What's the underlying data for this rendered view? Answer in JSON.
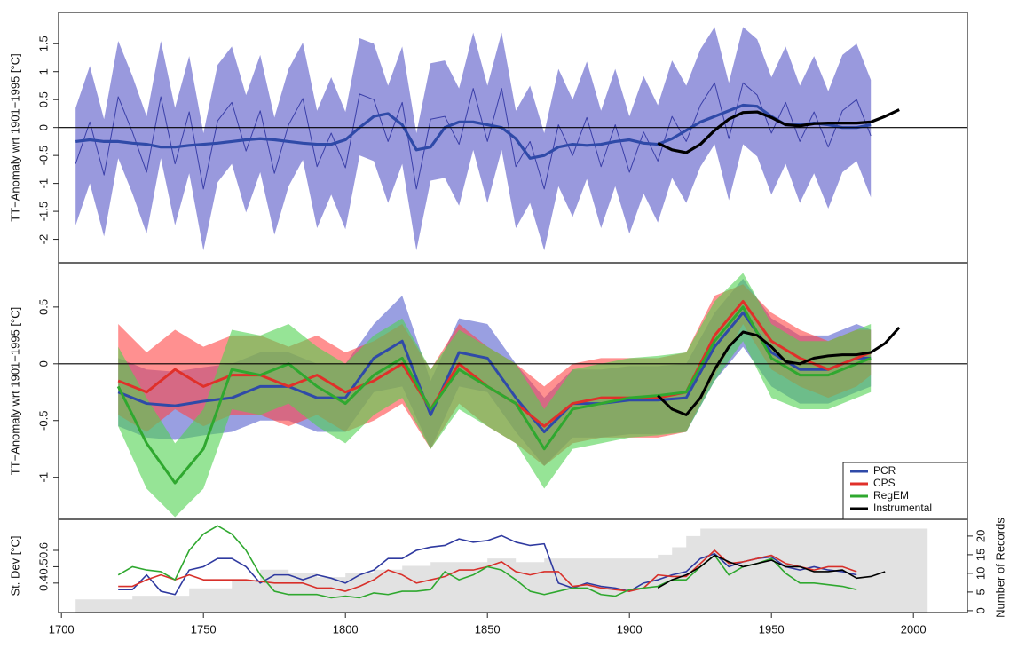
{
  "chart_data": [
    {
      "type": "line",
      "ylabel": "TT−Anomaly wrt 1901−1995 [°C]",
      "xlim": [
        1699,
        2019
      ],
      "ylim": [
        -2.42,
        2.06
      ],
      "yticks": [
        -2,
        -1.5,
        -1,
        -0.5,
        0,
        0.5,
        1,
        1.5
      ],
      "hline": 0,
      "x": [
        1705,
        1710,
        1715,
        1720,
        1725,
        1730,
        1735,
        1740,
        1745,
        1750,
        1755,
        1760,
        1765,
        1770,
        1775,
        1780,
        1785,
        1790,
        1795,
        1800,
        1805,
        1810,
        1815,
        1820,
        1825,
        1830,
        1835,
        1840,
        1845,
        1850,
        1855,
        1860,
        1865,
        1870,
        1875,
        1880,
        1885,
        1890,
        1895,
        1900,
        1905,
        1910,
        1915,
        1920,
        1925,
        1930,
        1935,
        1940,
        1945,
        1950,
        1955,
        1960,
        1965,
        1970,
        1975,
        1980,
        1985
      ],
      "series": [
        {
          "color": "#3a3fa8",
          "band_color": "rgba(90,90,200,0.62)",
          "linewidth": 1,
          "values": [
            -0.65,
            0.1,
            -0.85,
            0.55,
            -0.08,
            -0.8,
            0.55,
            -0.65,
            0.28,
            -1.1,
            0.12,
            0.45,
            -0.42,
            0.3,
            -0.82,
            0.05,
            0.52,
            -0.7,
            -0.1,
            -0.72,
            0.6,
            0.5,
            -0.25,
            0.45,
            -1.1,
            0.15,
            0.2,
            -0.3,
            0.7,
            -0.25,
            0.7,
            -0.7,
            -0.25,
            -1.1,
            0.05,
            -0.5,
            0.18,
            -0.7,
            0.05,
            -0.8,
            -0.08,
            -0.6,
            0.2,
            -0.25,
            0.4,
            0.8,
            -0.2,
            0.8,
            0.58,
            -0.1,
            0.45,
            -0.25,
            0.28,
            -0.35,
            0.3,
            0.5,
            -0.15
          ],
          "upper": [
            0.35,
            1.1,
            0.15,
            1.55,
            0.92,
            0.2,
            1.55,
            0.35,
            1.28,
            -0.1,
            1.12,
            1.45,
            0.58,
            1.3,
            0.18,
            1.05,
            1.52,
            0.3,
            0.9,
            0.28,
            1.6,
            1.5,
            0.75,
            1.45,
            -0.1,
            1.15,
            1.2,
            0.7,
            1.7,
            0.75,
            1.7,
            0.3,
            0.75,
            -0.1,
            1.05,
            0.5,
            1.18,
            0.3,
            1.05,
            0.2,
            0.92,
            0.4,
            1.2,
            0.75,
            1.4,
            1.8,
            0.8,
            1.8,
            1.58,
            0.9,
            1.45,
            0.75,
            1.28,
            0.65,
            1.3,
            1.5,
            0.85
          ],
          "lower": [
            -1.75,
            -1.0,
            -1.95,
            -0.55,
            -1.18,
            -1.9,
            -0.55,
            -1.75,
            -0.82,
            -2.2,
            -0.98,
            -0.65,
            -1.52,
            -0.8,
            -1.92,
            -1.05,
            -0.58,
            -1.8,
            -1.2,
            -1.82,
            -0.5,
            -0.6,
            -1.35,
            -0.65,
            -2.2,
            -0.95,
            -0.9,
            -1.4,
            -0.4,
            -1.35,
            -0.4,
            -1.8,
            -1.35,
            -2.2,
            -1.05,
            -1.6,
            -0.92,
            -1.8,
            -1.05,
            -1.9,
            -1.18,
            -1.7,
            -0.9,
            -1.35,
            -0.7,
            -0.3,
            -1.3,
            -0.3,
            -0.52,
            -1.2,
            -0.65,
            -1.35,
            -0.82,
            -1.45,
            -0.8,
            -0.6,
            -1.25
          ]
        },
        {
          "color": "#2f4aa8",
          "linewidth": 3.2,
          "values": [
            -0.25,
            -0.22,
            -0.25,
            -0.25,
            -0.28,
            -0.3,
            -0.35,
            -0.35,
            -0.32,
            -0.3,
            -0.28,
            -0.25,
            -0.22,
            -0.2,
            -0.22,
            -0.25,
            -0.28,
            -0.3,
            -0.3,
            -0.22,
            0.0,
            0.2,
            0.25,
            0.05,
            -0.4,
            -0.35,
            0.0,
            0.1,
            0.1,
            0.05,
            0.0,
            -0.2,
            -0.55,
            -0.5,
            -0.35,
            -0.3,
            -0.32,
            -0.3,
            -0.25,
            -0.22,
            -0.28,
            -0.3,
            -0.2,
            -0.05,
            0.1,
            0.2,
            0.3,
            0.4,
            0.38,
            0.2,
            0.05,
            0.05,
            0.08,
            0.05,
            0.0,
            0.0,
            0.05
          ]
        },
        {
          "color": "#000000",
          "linewidth": 3.2,
          "x": [
            1910,
            1915,
            1920,
            1925,
            1930,
            1935,
            1940,
            1945,
            1950,
            1955,
            1960,
            1965,
            1970,
            1975,
            1980,
            1985,
            1990,
            1995
          ],
          "values": [
            -0.28,
            -0.4,
            -0.45,
            -0.3,
            -0.05,
            0.15,
            0.27,
            0.28,
            0.18,
            0.05,
            0.03,
            0.07,
            0.08,
            0.08,
            0.08,
            0.1,
            0.2,
            0.32
          ]
        }
      ]
    },
    {
      "type": "line",
      "ylabel": "TT−Anomaly wrt 1901−1995 [°C]",
      "xlim": [
        1699,
        2019
      ],
      "ylim": [
        -1.37,
        0.89
      ],
      "yticks": [
        -1,
        -0.5,
        0,
        0.5
      ],
      "hline": 0,
      "legend": "lower right",
      "x": [
        1720,
        1730,
        1740,
        1750,
        1760,
        1770,
        1780,
        1790,
        1800,
        1810,
        1820,
        1830,
        1840,
        1850,
        1860,
        1870,
        1880,
        1890,
        1900,
        1910,
        1920,
        1930,
        1940,
        1950,
        1960,
        1970,
        1980,
        1985
      ],
      "series": [
        {
          "name": "PCR",
          "color": "#2f4aa8",
          "band_color": "rgba(70,80,200,0.55)",
          "linewidth": 3,
          "values": [
            -0.25,
            -0.35,
            -0.37,
            -0.33,
            -0.3,
            -0.2,
            -0.2,
            -0.3,
            -0.3,
            0.05,
            0.2,
            -0.45,
            0.1,
            0.05,
            -0.3,
            -0.6,
            -0.35,
            -0.35,
            -0.32,
            -0.32,
            -0.3,
            0.15,
            0.45,
            0.1,
            -0.05,
            -0.05,
            0.05,
            0.05
          ],
          "upper": [
            0.05,
            -0.05,
            -0.07,
            -0.03,
            0.0,
            0.1,
            0.1,
            0.0,
            0.0,
            0.35,
            0.6,
            -0.15,
            0.4,
            0.35,
            0.0,
            -0.3,
            -0.05,
            -0.05,
            -0.02,
            -0.02,
            0.0,
            0.45,
            0.75,
            0.4,
            0.25,
            0.25,
            0.35,
            0.3
          ],
          "lower": [
            -0.55,
            -0.65,
            -0.67,
            -0.63,
            -0.6,
            -0.5,
            -0.5,
            -0.6,
            -0.6,
            -0.25,
            -0.2,
            -0.75,
            -0.2,
            -0.25,
            -0.6,
            -0.9,
            -0.65,
            -0.65,
            -0.62,
            -0.62,
            -0.6,
            -0.15,
            0.15,
            -0.2,
            -0.35,
            -0.35,
            -0.25,
            -0.2
          ]
        },
        {
          "name": "CPS",
          "color": "#e0302a",
          "band_color": "rgba(255,70,70,0.6)",
          "linewidth": 3,
          "values": [
            -0.15,
            -0.25,
            -0.05,
            -0.2,
            -0.1,
            -0.1,
            -0.2,
            -0.1,
            -0.25,
            -0.15,
            0.0,
            -0.4,
            0.0,
            -0.2,
            -0.35,
            -0.55,
            -0.35,
            -0.3,
            -0.3,
            -0.3,
            -0.25,
            0.25,
            0.55,
            0.2,
            0.05,
            -0.05,
            0.05,
            0.1
          ],
          "upper": [
            0.35,
            0.1,
            0.3,
            0.15,
            0.25,
            0.25,
            0.15,
            0.25,
            0.1,
            0.2,
            0.35,
            -0.05,
            0.35,
            0.15,
            0.0,
            -0.2,
            0.0,
            0.05,
            0.05,
            0.05,
            0.1,
            0.6,
            0.7,
            0.45,
            0.3,
            0.2,
            0.3,
            0.3
          ],
          "lower": [
            -0.45,
            -0.6,
            -0.4,
            -0.55,
            -0.45,
            -0.45,
            -0.55,
            -0.45,
            -0.6,
            -0.5,
            -0.35,
            -0.75,
            -0.35,
            -0.55,
            -0.7,
            -0.9,
            -0.7,
            -0.65,
            -0.65,
            -0.65,
            -0.6,
            -0.1,
            0.35,
            -0.05,
            -0.2,
            -0.3,
            -0.2,
            -0.1
          ]
        },
        {
          "name": "RegEM",
          "color": "#2fa82f",
          "band_color": "rgba(80,210,80,0.6)",
          "linewidth": 3,
          "values": [
            -0.2,
            -0.7,
            -1.05,
            -0.75,
            -0.05,
            -0.1,
            0.0,
            -0.2,
            -0.35,
            -0.1,
            0.05,
            -0.4,
            -0.05,
            -0.2,
            -0.35,
            -0.75,
            -0.4,
            -0.35,
            -0.3,
            -0.28,
            -0.25,
            0.2,
            0.5,
            0.05,
            -0.1,
            -0.1,
            0.0,
            0.05
          ],
          "upper": [
            0.15,
            -0.3,
            -0.7,
            -0.4,
            0.3,
            0.25,
            0.35,
            0.15,
            0.0,
            0.25,
            0.4,
            -0.05,
            0.3,
            0.15,
            0.0,
            -0.4,
            -0.05,
            0.0,
            0.05,
            0.07,
            0.1,
            0.55,
            0.8,
            0.35,
            0.2,
            0.2,
            0.3,
            0.35
          ],
          "lower": [
            -0.55,
            -1.1,
            -1.35,
            -1.1,
            -0.4,
            -0.45,
            -0.35,
            -0.55,
            -0.7,
            -0.45,
            -0.3,
            -0.75,
            -0.4,
            -0.55,
            -0.7,
            -1.1,
            -0.75,
            -0.7,
            -0.65,
            -0.63,
            -0.6,
            -0.15,
            0.2,
            -0.3,
            -0.4,
            -0.4,
            -0.3,
            -0.25
          ]
        },
        {
          "name": "Instrumental",
          "color": "#000000",
          "linewidth": 3,
          "x": [
            1910,
            1915,
            1920,
            1925,
            1930,
            1935,
            1940,
            1945,
            1950,
            1955,
            1960,
            1965,
            1970,
            1975,
            1980,
            1985,
            1990,
            1995
          ],
          "values": [
            -0.28,
            -0.4,
            -0.45,
            -0.3,
            -0.05,
            0.15,
            0.28,
            0.25,
            0.15,
            0.02,
            0.0,
            0.05,
            0.07,
            0.08,
            0.08,
            0.1,
            0.18,
            0.32
          ]
        }
      ]
    },
    {
      "type": "line",
      "ylabel": "St. Dev [°C]",
      "y2label": "Number of Records",
      "xlim": [
        1699,
        2019
      ],
      "xticks": [
        1700,
        1750,
        1800,
        1850,
        1900,
        1950,
        2000
      ],
      "ylim": [
        0.22,
        0.79
      ],
      "yticks": [
        0.4,
        0.5,
        0.6
      ],
      "y2lim": [
        -0.5,
        24.5
      ],
      "y2ticks": [
        0,
        5,
        10,
        15,
        20
      ],
      "x": [
        1720,
        1725,
        1730,
        1735,
        1740,
        1745,
        1750,
        1755,
        1760,
        1765,
        1770,
        1775,
        1780,
        1785,
        1790,
        1795,
        1800,
        1805,
        1810,
        1815,
        1820,
        1825,
        1830,
        1835,
        1840,
        1845,
        1850,
        1855,
        1860,
        1865,
        1870,
        1875,
        1880,
        1885,
        1890,
        1895,
        1900,
        1905,
        1910,
        1915,
        1920,
        1925,
        1930,
        1935,
        1940,
        1945,
        1950,
        1955,
        1960,
        1965,
        1970,
        1975,
        1980
      ],
      "series": [
        {
          "axis": "y2",
          "style": "step-area",
          "color": "#e2e2e2",
          "x": [
            1705,
            1725,
            1745,
            1760,
            1770,
            1780,
            1790,
            1800,
            1810,
            1820,
            1830,
            1840,
            1850,
            1860,
            1870,
            1880,
            1890,
            1900,
            1910,
            1915,
            1920,
            1925,
            2005
          ],
          "values": [
            3,
            4,
            6,
            8,
            11,
            10,
            9,
            10,
            11,
            12,
            13,
            13,
            14,
            13,
            14,
            14,
            14,
            14,
            15,
            17,
            20,
            22,
            22
          ]
        },
        {
          "color": "#2f3aa0",
          "linewidth": 1.6,
          "values": [
            0.36,
            0.36,
            0.45,
            0.35,
            0.33,
            0.48,
            0.5,
            0.55,
            0.55,
            0.5,
            0.4,
            0.45,
            0.45,
            0.42,
            0.45,
            0.43,
            0.4,
            0.45,
            0.48,
            0.55,
            0.55,
            0.6,
            0.62,
            0.63,
            0.67,
            0.65,
            0.66,
            0.69,
            0.65,
            0.63,
            0.64,
            0.4,
            0.37,
            0.4,
            0.38,
            0.37,
            0.35,
            0.4,
            0.42,
            0.45,
            0.47,
            0.55,
            0.58,
            0.5,
            0.53,
            0.55,
            0.56,
            0.5,
            0.48,
            0.5,
            0.48,
            0.47,
            0.45
          ]
        },
        {
          "color": "#d8302a",
          "linewidth": 1.6,
          "values": [
            0.38,
            0.38,
            0.42,
            0.45,
            0.42,
            0.45,
            0.42,
            0.42,
            0.42,
            0.42,
            0.41,
            0.4,
            0.4,
            0.4,
            0.37,
            0.37,
            0.35,
            0.38,
            0.42,
            0.48,
            0.45,
            0.4,
            0.42,
            0.44,
            0.48,
            0.48,
            0.5,
            0.53,
            0.47,
            0.45,
            0.47,
            0.47,
            0.38,
            0.39,
            0.37,
            0.36,
            0.35,
            0.37,
            0.45,
            0.44,
            0.44,
            0.52,
            0.6,
            0.52,
            0.53,
            0.55,
            0.57,
            0.52,
            0.5,
            0.48,
            0.5,
            0.5,
            0.47
          ]
        },
        {
          "color": "#2fa82f",
          "linewidth": 1.6,
          "values": [
            0.45,
            0.5,
            0.48,
            0.47,
            0.42,
            0.6,
            0.7,
            0.75,
            0.7,
            0.6,
            0.45,
            0.35,
            0.33,
            0.33,
            0.33,
            0.31,
            0.32,
            0.31,
            0.34,
            0.33,
            0.35,
            0.35,
            0.36,
            0.47,
            0.42,
            0.45,
            0.5,
            0.48,
            0.42,
            0.35,
            0.33,
            0.35,
            0.37,
            0.37,
            0.33,
            0.32,
            0.36,
            0.37,
            0.38,
            0.42,
            0.42,
            0.5,
            0.57,
            0.45,
            0.5,
            0.52,
            0.55,
            0.46,
            0.4,
            0.4,
            0.39,
            0.38,
            0.36
          ]
        },
        {
          "color": "#000000",
          "linewidth": 1.6,
          "x": [
            1910,
            1915,
            1920,
            1925,
            1930,
            1935,
            1940,
            1945,
            1950,
            1955,
            1960,
            1965,
            1970,
            1975,
            1980,
            1985,
            1990
          ],
          "values": [
            0.37,
            0.42,
            0.45,
            0.5,
            0.57,
            0.53,
            0.5,
            0.52,
            0.54,
            0.5,
            0.5,
            0.47,
            0.47,
            0.48,
            0.43,
            0.44,
            0.47
          ]
        }
      ]
    }
  ]
}
